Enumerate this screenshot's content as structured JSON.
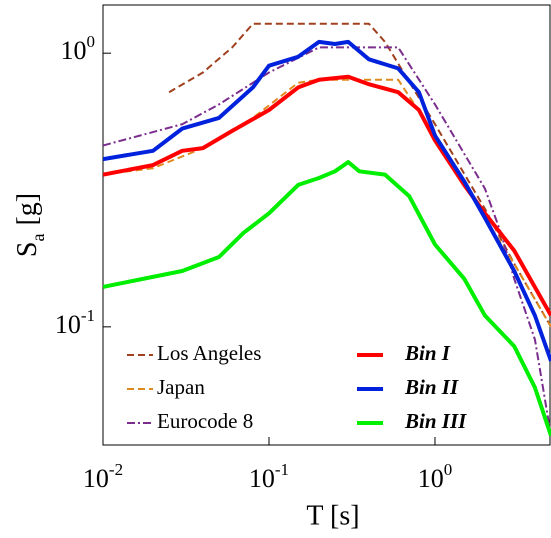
{
  "chart_data": {
    "type": "line",
    "xlabel": "T [s]",
    "ylabel": {
      "text": "S",
      "subscript": "a",
      "suffix": "[g]"
    },
    "xscale": "log",
    "yscale": "log",
    "xlim": [
      0.01,
      5
    ],
    "ylim": [
      0.037,
      1.5
    ],
    "xticks": [
      {
        "value": 0.01,
        "label": "10",
        "exponent": "-2"
      },
      {
        "value": 0.1,
        "label": "10",
        "exponent": "-1"
      },
      {
        "value": 1,
        "label": "10",
        "exponent": "0"
      }
    ],
    "yticks": [
      {
        "value": 0.1,
        "label": "10",
        "exponent": "-1"
      },
      {
        "value": 1,
        "label": "10",
        "exponent": "0"
      }
    ],
    "legend": "lower left",
    "series": [
      {
        "name": "Los Angeles",
        "color": "#a0401e",
        "dash": "dashed",
        "width": 2,
        "x": [
          0.025,
          0.04,
          0.06,
          0.08,
          0.4,
          0.5,
          1,
          2,
          3,
          5
        ],
        "values": [
          0.72,
          0.85,
          1.05,
          1.28,
          1.28,
          1.1,
          0.55,
          0.27,
          0.17,
          0.1
        ]
      },
      {
        "name": "Japan",
        "color": "#e08a1e",
        "dash": "dashed",
        "width": 2,
        "x": [
          0.01,
          0.02,
          0.04,
          0.08,
          0.15,
          0.2,
          0.6,
          1,
          2,
          3,
          5
        ],
        "values": [
          0.36,
          0.38,
          0.45,
          0.58,
          0.78,
          0.8,
          0.8,
          0.5,
          0.25,
          0.17,
          0.1
        ]
      },
      {
        "name": "Eurocode 8",
        "color": "#7b2d8e",
        "dash": "dashdot",
        "width": 2,
        "x": [
          0.01,
          0.03,
          0.05,
          0.1,
          0.2,
          0.6,
          1,
          2,
          2.5,
          3,
          4,
          5
        ],
        "values": [
          0.46,
          0.55,
          0.65,
          0.85,
          1.05,
          1.05,
          0.65,
          0.32,
          0.22,
          0.15,
          0.09,
          0.04
        ]
      },
      {
        "name": "Bin I",
        "color": "#ff0000",
        "dash": "solid",
        "width": 4,
        "x": [
          0.01,
          0.02,
          0.03,
          0.04,
          0.06,
          0.1,
          0.15,
          0.2,
          0.3,
          0.4,
          0.6,
          0.8,
          1,
          1.5,
          2,
          3,
          5
        ],
        "values": [
          0.36,
          0.39,
          0.44,
          0.45,
          0.52,
          0.62,
          0.75,
          0.8,
          0.82,
          0.77,
          0.72,
          0.62,
          0.48,
          0.33,
          0.26,
          0.19,
          0.11
        ]
      },
      {
        "name": "Bin II",
        "color": "#0022dd",
        "dash": "solid",
        "width": 4,
        "x": [
          0.01,
          0.02,
          0.03,
          0.05,
          0.08,
          0.1,
          0.15,
          0.2,
          0.25,
          0.3,
          0.4,
          0.6,
          0.8,
          1,
          1.5,
          2,
          3,
          4,
          5
        ],
        "values": [
          0.41,
          0.44,
          0.53,
          0.58,
          0.75,
          0.9,
          0.97,
          1.1,
          1.08,
          1.1,
          0.95,
          0.88,
          0.72,
          0.5,
          0.34,
          0.25,
          0.16,
          0.11,
          0.075
        ]
      },
      {
        "name": "Bin III",
        "color": "#00ee00",
        "dash": "solid",
        "width": 4,
        "x": [
          0.01,
          0.03,
          0.05,
          0.07,
          0.1,
          0.15,
          0.2,
          0.25,
          0.3,
          0.35,
          0.5,
          0.7,
          1,
          1.5,
          2,
          3,
          4,
          5
        ],
        "values": [
          0.14,
          0.16,
          0.18,
          0.22,
          0.26,
          0.33,
          0.35,
          0.37,
          0.4,
          0.37,
          0.36,
          0.3,
          0.2,
          0.15,
          0.11,
          0.085,
          0.06,
          0.04
        ]
      }
    ]
  }
}
